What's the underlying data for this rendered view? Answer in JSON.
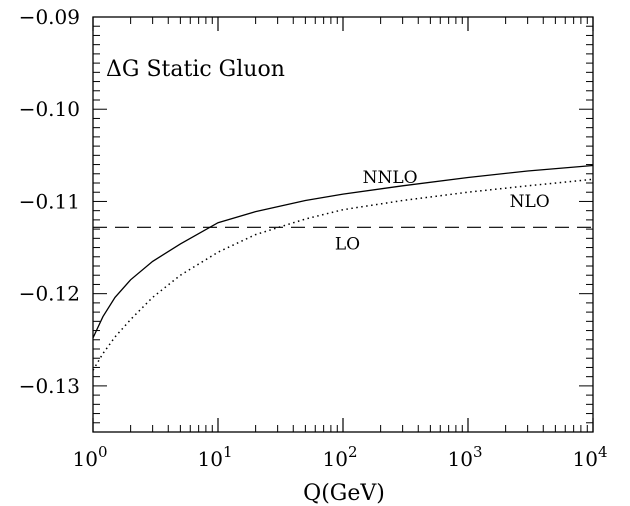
{
  "chart_data": {
    "type": "line",
    "title": "ΔG Static Gluon",
    "xlabel": "Q(GeV)",
    "ylabel": "",
    "xscale": "log",
    "xlim": [
      1,
      10000
    ],
    "ylim": [
      -0.135,
      -0.09
    ],
    "grid": false,
    "legend": "none (inline annotations)",
    "x_ticks": [
      {
        "value": 1,
        "base": "10",
        "exp": "0"
      },
      {
        "value": 10,
        "base": "10",
        "exp": "1"
      },
      {
        "value": 100,
        "base": "10",
        "exp": "2"
      },
      {
        "value": 1000,
        "base": "10",
        "exp": "3"
      },
      {
        "value": 10000,
        "base": "10",
        "exp": "4"
      }
    ],
    "y_ticks": [
      {
        "value": -0.09,
        "label": "−0.09"
      },
      {
        "value": -0.1,
        "label": "−0.10"
      },
      {
        "value": -0.11,
        "label": "−0.11"
      },
      {
        "value": -0.12,
        "label": "−0.12"
      },
      {
        "value": -0.13,
        "label": "−0.13"
      }
    ],
    "series": [
      {
        "name": "NNLO",
        "style": "solid",
        "x": [
          1,
          1.2,
          1.5,
          2,
          3,
          5,
          10,
          20,
          50,
          100,
          300,
          1000,
          3000,
          10000
        ],
        "y": [
          -0.1248,
          -0.1225,
          -0.1204,
          -0.1185,
          -0.1165,
          -0.1146,
          -0.1123,
          -0.1111,
          -0.1099,
          -0.1092,
          -0.1083,
          -0.1074,
          -0.1067,
          -0.1061
        ]
      },
      {
        "name": "NLO",
        "style": "dotted",
        "x": [
          1,
          1.2,
          1.5,
          2,
          3,
          5,
          10,
          20,
          50,
          100,
          300,
          1000,
          3000,
          10000
        ],
        "y": [
          -0.1283,
          -0.1265,
          -0.1247,
          -0.1228,
          -0.1204,
          -0.118,
          -0.1155,
          -0.1136,
          -0.1119,
          -0.1109,
          -0.1099,
          -0.109,
          -0.1083,
          -0.1076
        ]
      },
      {
        "name": "LO",
        "style": "dashed",
        "x": [
          1,
          10000
        ],
        "y": [
          -0.1128,
          -0.1128
        ]
      }
    ],
    "annotations": [
      {
        "text": "NNLO",
        "x": 200,
        "y": -0.108
      },
      {
        "text": "NLO",
        "x": 3000,
        "y": -0.1106
      },
      {
        "text": "LO",
        "x": 120,
        "y": -0.1152
      }
    ]
  }
}
